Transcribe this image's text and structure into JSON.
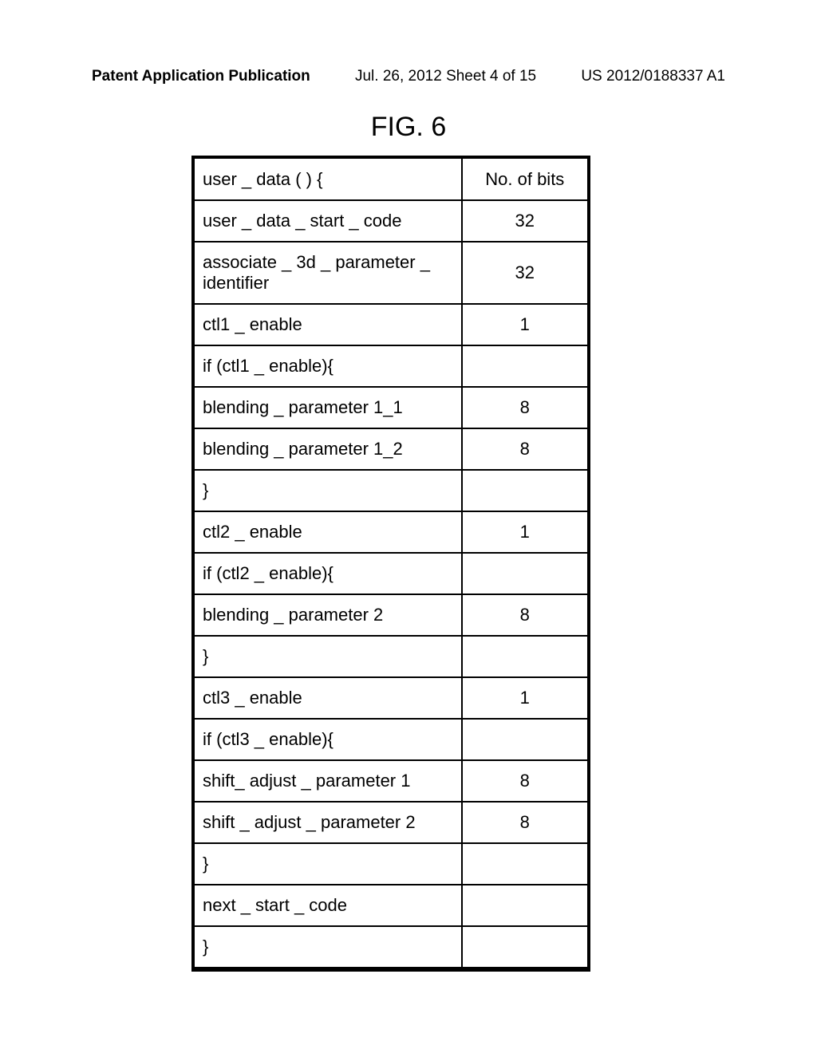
{
  "header": {
    "left": "Patent Application Publication",
    "center": "Jul. 26, 2012  Sheet 4 of 15",
    "right": "US 2012/0188337 A1"
  },
  "figure_title": "FIG. 6",
  "table": {
    "header_left": "user _ data ( ) {",
    "header_right": "No. of bits",
    "rows": [
      {
        "left": "user _ data _ start _ code",
        "right": "32"
      },
      {
        "left": "associate _ 3d _ parameter _ identifier",
        "right": "32"
      },
      {
        "left": "ctl1 _ enable",
        "right": "1"
      },
      {
        "left": "if (ctl1 _ enable){",
        "right": ""
      },
      {
        "left": "blending _ parameter 1_1",
        "right": "8"
      },
      {
        "left": "blending _ parameter 1_2",
        "right": "8"
      },
      {
        "left": "}",
        "right": ""
      },
      {
        "left": "ctl2 _ enable",
        "right": "1"
      },
      {
        "left": "if (ctl2 _ enable){",
        "right": ""
      },
      {
        "left": "blending _ parameter 2",
        "right": "8"
      },
      {
        "left": "}",
        "right": ""
      },
      {
        "left": "ctl3 _ enable",
        "right": "1"
      },
      {
        "left": "if (ctl3 _ enable){",
        "right": ""
      },
      {
        "left": "shift_ adjust _ parameter 1",
        "right": "8"
      },
      {
        "left": "shift _ adjust _ parameter 2",
        "right": "8"
      },
      {
        "left": "}",
        "right": ""
      },
      {
        "left": "next _ start _ code",
        "right": ""
      },
      {
        "left": "}",
        "right": ""
      }
    ]
  }
}
